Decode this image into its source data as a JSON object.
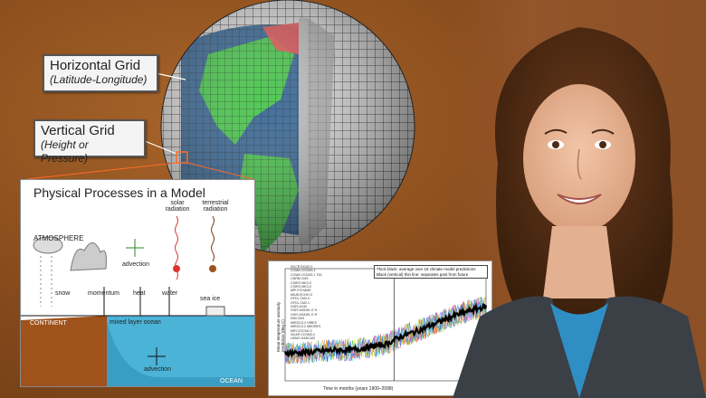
{
  "labels": {
    "horizontal_grid": "Horizontal Grid",
    "horizontal_grid_sub": "(Latitude-Longitude)",
    "vertical_grid": "Vertical Grid",
    "vertical_grid_sub": "(Height or Pressure)"
  },
  "physical_processes": {
    "title": "Physical Processes in a Model",
    "atmosphere": "ATMOSPHERE",
    "advection_top": "advection",
    "solar": "solar radiation",
    "terrestrial": "terrestrial radiation",
    "snow": "snow",
    "momentum": "momentum",
    "heat": "heat",
    "water": "water",
    "sea_ice": "sea ice",
    "continent": "CONTINENT",
    "mixed_layer": "mixed layer ocean",
    "advection_bottom": "advection",
    "ocean": "OCEAN"
  },
  "timeseries": {
    "note_line1": "Thick black: average over 18 climate model predictions",
    "note_line2": "Black (vertical) thin line: separates past from future",
    "xlabel": "Time in months (years 1900–2098)",
    "ylabel": "Mean temperature anomaly prediction (deg C)",
    "legend": [
      "NCCR BCM2.0",
      "CCMA CGCM3.1",
      "CCMA CGCM3.1 T63",
      "CNRM CM3",
      "CSIRO MK3.0",
      "CSIRO MK3.5",
      "MPI ECHAM5",
      "MIUB ECHO G",
      "GFDL CM2.0",
      "GFDL CM2.1",
      "GISS AOM",
      "GISS MODEL E H",
      "GISS MODEL E R",
      "INM CM3",
      "MIROC3.2 HIRES",
      "MIROC3.2 MEDRES",
      "MRI CGCM2.3",
      "NCAR CCSM3.0",
      "UKMO HADCM3"
    ]
  },
  "chart_data": {
    "type": "line",
    "title": "",
    "xlabel": "Time in months (years 1900–2098)",
    "ylabel": "Mean temperature anomaly prediction (deg C)",
    "xlim": [
      0,
      2400
    ],
    "ylim": [
      -2,
      6
    ],
    "series": [
      {
        "name": "Thick black: average over 18 climate model predictions",
        "x": [
          0,
          200,
          400,
          600,
          800,
          1000,
          1200,
          1300,
          1400,
          1600,
          1800,
          2000,
          2200,
          2400
        ],
        "values": [
          0,
          0,
          0.1,
          0.2,
          0.2,
          0.4,
          0.6,
          0.9,
          1.2,
          1.6,
          2.1,
          2.6,
          3.0,
          3.3
        ]
      }
    ]
  },
  "colors": {
    "land": "#3fc243",
    "ocean": "#2e5f8f",
    "highlight": "#e84a4a"
  }
}
